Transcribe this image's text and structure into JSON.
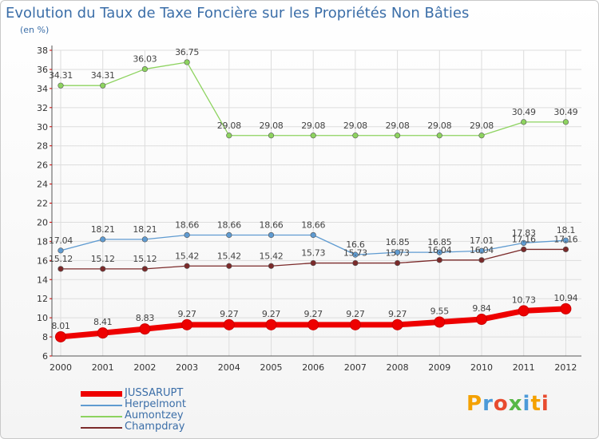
{
  "title": "Evolution du Taux de Taxe Foncière sur les Propriétés Non Bâties",
  "unit": "(en %)",
  "logo": {
    "text": "Proxiti",
    "colors": [
      "#f4a100",
      "#4c9ad8",
      "#e84b2f",
      "#58b847",
      "#4c9ad8",
      "#f4a100",
      "#e84b2f"
    ]
  },
  "chart_data": {
    "type": "line",
    "title": "Evolution du Taux de Taxe Foncière sur les Propriétés Non Bâties",
    "ylabel": "(en %)",
    "xlabel": "",
    "ylim": [
      6,
      38
    ],
    "yticks": [
      6,
      8,
      10,
      12,
      14,
      16,
      18,
      20,
      22,
      24,
      26,
      28,
      30,
      32,
      34,
      36,
      38
    ],
    "categories": [
      "2000",
      "2001",
      "2002",
      "2003",
      "2004",
      "2005",
      "2006",
      "2007",
      "2008",
      "2009",
      "2010",
      "2011",
      "2012"
    ],
    "grid": true,
    "legend_position": "bottom-left",
    "series": [
      {
        "name": "JUSSARUPT",
        "color": "#ee0000",
        "values": [
          8.01,
          8.41,
          8.83,
          9.27,
          9.27,
          9.27,
          9.27,
          9.27,
          9.27,
          9.55,
          9.84,
          10.73,
          10.94
        ],
        "labels": [
          "8.01",
          "8.41",
          "8.83",
          "9.27",
          "9.27",
          "9.27",
          "9.27",
          "9.27",
          "9.27",
          "9.55",
          "9.84",
          "10.73",
          "10.94"
        ]
      },
      {
        "name": "Herpelmont",
        "color": "#5f9bd1",
        "values": [
          17.04,
          18.21,
          18.21,
          18.66,
          18.66,
          18.66,
          18.66,
          16.6,
          16.85,
          16.85,
          17.01,
          17.83,
          18.1
        ],
        "labels": [
          "17.04",
          "18.21",
          "18.21",
          "18.66",
          "18.66",
          "18.66",
          "18.66",
          "16.6",
          "16.85",
          "16.85",
          "17.01",
          "17.83",
          "18.1"
        ]
      },
      {
        "name": "Aumontzey",
        "color": "#8dd35f",
        "values": [
          34.31,
          34.31,
          36.03,
          36.75,
          29.08,
          29.08,
          29.08,
          29.08,
          29.08,
          29.08,
          29.08,
          30.49,
          30.49
        ],
        "labels": [
          "34.31",
          "34.31",
          "36.03",
          "36.75",
          "29.08",
          "29.08",
          "29.08",
          "29.08",
          "29.08",
          "29.08",
          "29.08",
          "30.49",
          "30.49"
        ]
      },
      {
        "name": "Champdray",
        "color": "#7b2a2a",
        "values": [
          15.12,
          15.12,
          15.12,
          15.42,
          15.42,
          15.42,
          15.73,
          15.73,
          15.73,
          16.04,
          16.04,
          17.16,
          17.16
        ],
        "labels": [
          "15.12",
          "15.12",
          "15.12",
          "15.42",
          "15.42",
          "15.42",
          "15.73",
          "15.73",
          "15.73",
          "16.04",
          "16.04",
          "17.16",
          "17.16"
        ]
      }
    ]
  }
}
